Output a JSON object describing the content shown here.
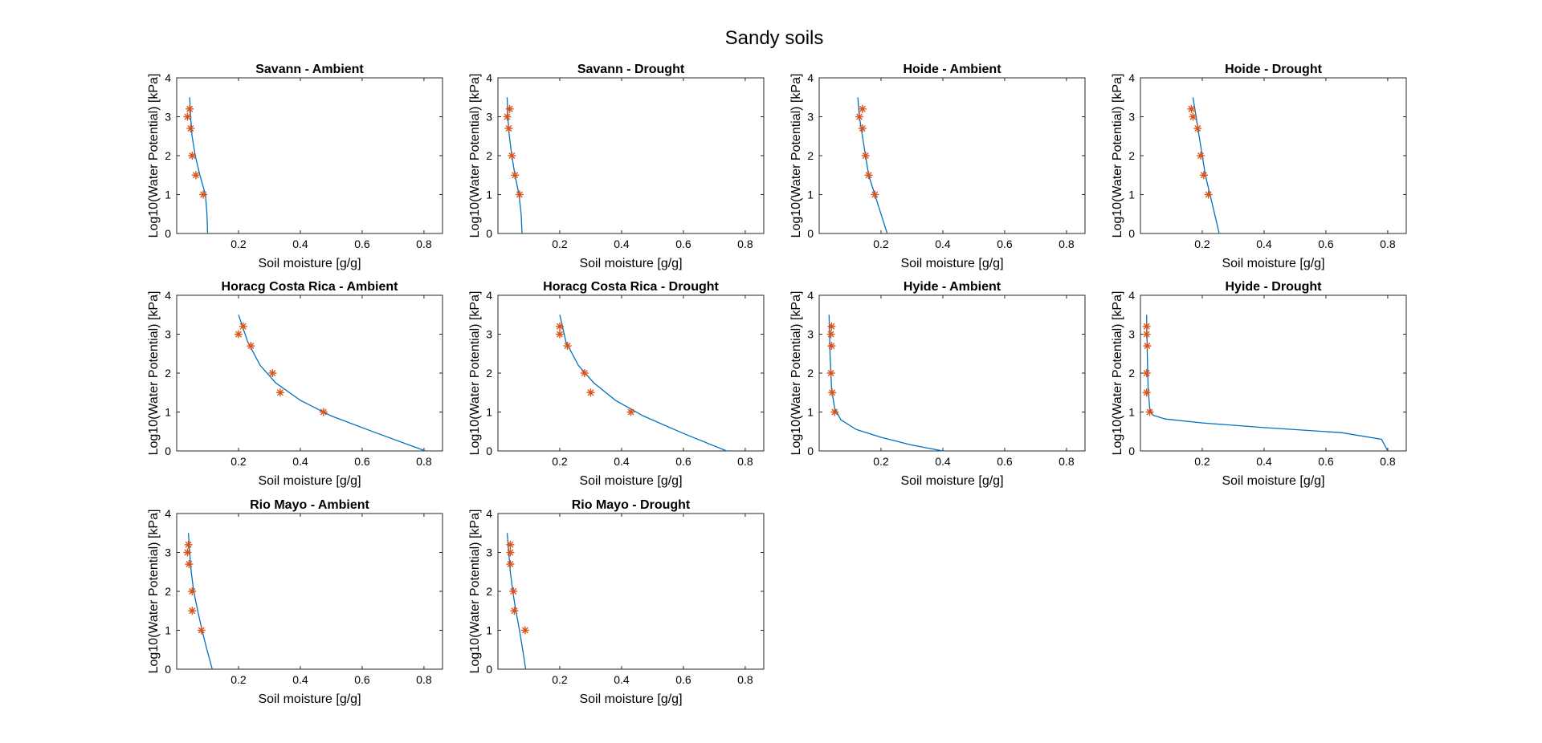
{
  "figure_title": "Sandy soils",
  "chart_data": [
    {
      "type": "line",
      "title": "Savann - Ambient",
      "xlabel": "Soil moisture [g/g]",
      "ylabel": "Log10(Water Potential) [kPa]",
      "xlim": [
        0,
        0.86
      ],
      "ylim": [
        0,
        4
      ],
      "xticks": [
        0.2,
        0.4,
        0.6,
        0.8
      ],
      "yticks": [
        0,
        1,
        2,
        3,
        4
      ],
      "series": [
        {
          "kind": "fit",
          "points": [
            [
              0.1,
              0
            ],
            [
              0.098,
              0.5
            ],
            [
              0.093,
              1
            ],
            [
              0.075,
              1.5
            ],
            [
              0.06,
              2
            ],
            [
              0.05,
              2.5
            ],
            [
              0.045,
              3
            ],
            [
              0.042,
              3.5
            ]
          ]
        },
        {
          "kind": "measured",
          "points": [
            [
              0.086,
              1
            ],
            [
              0.062,
              1.5
            ],
            [
              0.05,
              2
            ],
            [
              0.045,
              2.7
            ],
            [
              0.035,
              3
            ],
            [
              0.042,
              3.2
            ]
          ]
        }
      ]
    },
    {
      "type": "line",
      "title": "Savann - Drought",
      "xlabel": "Soil moisture [g/g]",
      "ylabel": "Log10(Water Potential) [kPa]",
      "xlim": [
        0,
        0.86
      ],
      "ylim": [
        0,
        4
      ],
      "xticks": [
        0.2,
        0.4,
        0.6,
        0.8
      ],
      "yticks": [
        0,
        1,
        2,
        3,
        4
      ],
      "series": [
        {
          "kind": "fit",
          "points": [
            [
              0.078,
              0
            ],
            [
              0.075,
              0.5
            ],
            [
              0.068,
              1
            ],
            [
              0.055,
              1.5
            ],
            [
              0.045,
              2
            ],
            [
              0.037,
              2.5
            ],
            [
              0.032,
              3
            ],
            [
              0.03,
              3.5
            ]
          ]
        },
        {
          "kind": "measured",
          "points": [
            [
              0.07,
              1
            ],
            [
              0.055,
              1.5
            ],
            [
              0.045,
              2
            ],
            [
              0.035,
              2.7
            ],
            [
              0.03,
              3
            ],
            [
              0.038,
              3.2
            ]
          ]
        }
      ]
    },
    {
      "type": "line",
      "title": "Hoide - Ambient",
      "xlabel": "Soil moisture [g/g]",
      "ylabel": "Log10(Water Potential) [kPa]",
      "xlim": [
        0,
        0.86
      ],
      "ylim": [
        0,
        4
      ],
      "xticks": [
        0.2,
        0.4,
        0.6,
        0.8
      ],
      "yticks": [
        0,
        1,
        2,
        3,
        4
      ],
      "series": [
        {
          "kind": "fit",
          "points": [
            [
              0.22,
              0
            ],
            [
              0.2,
              0.5
            ],
            [
              0.18,
              1
            ],
            [
              0.16,
              1.5
            ],
            [
              0.15,
              2
            ],
            [
              0.14,
              2.5
            ],
            [
              0.13,
              3
            ],
            [
              0.125,
              3.5
            ]
          ]
        },
        {
          "kind": "measured",
          "points": [
            [
              0.18,
              1
            ],
            [
              0.16,
              1.5
            ],
            [
              0.15,
              2
            ],
            [
              0.14,
              2.7
            ],
            [
              0.13,
              3
            ],
            [
              0.14,
              3.2
            ]
          ]
        }
      ]
    },
    {
      "type": "line",
      "title": "Hoide - Drought",
      "xlabel": "Soil moisture [g/g]",
      "ylabel": "Log10(Water Potential) [kPa]",
      "xlim": [
        0,
        0.86
      ],
      "ylim": [
        0,
        4
      ],
      "xticks": [
        0.2,
        0.4,
        0.6,
        0.8
      ],
      "yticks": [
        0,
        1,
        2,
        3,
        4
      ],
      "series": [
        {
          "kind": "fit",
          "points": [
            [
              0.255,
              0
            ],
            [
              0.24,
              0.5
            ],
            [
              0.225,
              1
            ],
            [
              0.21,
              1.5
            ],
            [
              0.2,
              2
            ],
            [
              0.19,
              2.5
            ],
            [
              0.18,
              3
            ],
            [
              0.17,
              3.5
            ]
          ]
        },
        {
          "kind": "measured",
          "points": [
            [
              0.22,
              1
            ],
            [
              0.205,
              1.5
            ],
            [
              0.195,
              2
            ],
            [
              0.185,
              2.7
            ],
            [
              0.17,
              3
            ],
            [
              0.165,
              3.2
            ]
          ]
        }
      ]
    },
    {
      "type": "line",
      "title": "Horacg Costa Rica - Ambient",
      "xlabel": "Soil moisture [g/g]",
      "ylabel": "Log10(Water Potential) [kPa]",
      "xlim": [
        0,
        0.86
      ],
      "ylim": [
        0,
        4
      ],
      "xticks": [
        0.2,
        0.4,
        0.6,
        0.8
      ],
      "yticks": [
        0,
        1,
        2,
        3,
        4
      ],
      "series": [
        {
          "kind": "fit",
          "points": [
            [
              0.805,
              0
            ],
            [
              0.65,
              0.45
            ],
            [
              0.5,
              0.9
            ],
            [
              0.4,
              1.3
            ],
            [
              0.32,
              1.75
            ],
            [
              0.27,
              2.2
            ],
            [
              0.23,
              2.8
            ],
            [
              0.2,
              3.5
            ]
          ]
        },
        {
          "kind": "measured",
          "points": [
            [
              0.475,
              1
            ],
            [
              0.335,
              1.5
            ],
            [
              0.31,
              2
            ],
            [
              0.24,
              2.7
            ],
            [
              0.2,
              3
            ],
            [
              0.215,
              3.2
            ]
          ]
        }
      ]
    },
    {
      "type": "line",
      "title": "Horacg Costa Rica - Drought",
      "xlabel": "Soil moisture [g/g]",
      "ylabel": "Log10(Water Potential) [kPa]",
      "xlim": [
        0,
        0.86
      ],
      "ylim": [
        0,
        4
      ],
      "xticks": [
        0.2,
        0.4,
        0.6,
        0.8
      ],
      "yticks": [
        0,
        1,
        2,
        3,
        4
      ],
      "series": [
        {
          "kind": "fit",
          "points": [
            [
              0.74,
              0
            ],
            [
              0.6,
              0.45
            ],
            [
              0.47,
              0.9
            ],
            [
              0.38,
              1.3
            ],
            [
              0.31,
              1.75
            ],
            [
              0.26,
              2.2
            ],
            [
              0.22,
              2.8
            ],
            [
              0.2,
              3.5
            ]
          ]
        },
        {
          "kind": "measured",
          "points": [
            [
              0.43,
              1
            ],
            [
              0.3,
              1.5
            ],
            [
              0.28,
              2
            ],
            [
              0.225,
              2.7
            ],
            [
              0.2,
              3
            ],
            [
              0.2,
              3.2
            ]
          ]
        }
      ]
    },
    {
      "type": "line",
      "title": "Hyide - Ambient",
      "xlabel": "Soil moisture [g/g]",
      "ylabel": "Log10(Water Potential) [kPa]",
      "xlim": [
        0,
        0.86
      ],
      "ylim": [
        0,
        4
      ],
      "xticks": [
        0.2,
        0.4,
        0.6,
        0.8
      ],
      "yticks": [
        0,
        1,
        2,
        3,
        4
      ],
      "series": [
        {
          "kind": "fit",
          "points": [
            [
              0.4,
              0
            ],
            [
              0.3,
              0.15
            ],
            [
              0.2,
              0.35
            ],
            [
              0.12,
              0.55
            ],
            [
              0.07,
              0.8
            ],
            [
              0.05,
              1.1
            ],
            [
              0.04,
              1.6
            ],
            [
              0.035,
              2.5
            ],
            [
              0.032,
              3.5
            ]
          ]
        },
        {
          "kind": "measured",
          "points": [
            [
              0.05,
              1
            ],
            [
              0.042,
              1.5
            ],
            [
              0.038,
              2
            ],
            [
              0.04,
              2.7
            ],
            [
              0.038,
              3
            ],
            [
              0.04,
              3.2
            ]
          ]
        }
      ]
    },
    {
      "type": "line",
      "title": "Hyide - Drought",
      "xlabel": "Soil moisture [g/g]",
      "ylabel": "Log10(Water Potential) [kPa]",
      "xlim": [
        0,
        0.86
      ],
      "ylim": [
        0,
        4
      ],
      "xticks": [
        0.2,
        0.4,
        0.6,
        0.8
      ],
      "yticks": [
        0,
        1,
        2,
        3,
        4
      ],
      "series": [
        {
          "kind": "fit",
          "points": [
            [
              0.8,
              0
            ],
            [
              0.78,
              0.3
            ],
            [
              0.65,
              0.47
            ],
            [
              0.4,
              0.6
            ],
            [
              0.2,
              0.72
            ],
            [
              0.08,
              0.82
            ],
            [
              0.04,
              0.92
            ],
            [
              0.03,
              1.1
            ],
            [
              0.025,
              1.6
            ],
            [
              0.022,
              2.5
            ],
            [
              0.02,
              3.5
            ]
          ]
        },
        {
          "kind": "measured",
          "points": [
            [
              0.03,
              1
            ],
            [
              0.02,
              1.5
            ],
            [
              0.02,
              2
            ],
            [
              0.022,
              2.7
            ],
            [
              0.02,
              3
            ],
            [
              0.02,
              3.2
            ]
          ]
        }
      ]
    },
    {
      "type": "line",
      "title": "Rio Mayo - Ambient",
      "xlabel": "Soil moisture [g/g]",
      "ylabel": "Log10(Water Potential) [kPa]",
      "xlim": [
        0,
        0.86
      ],
      "ylim": [
        0,
        4
      ],
      "xticks": [
        0.2,
        0.4,
        0.6,
        0.8
      ],
      "yticks": [
        0,
        1,
        2,
        3,
        4
      ],
      "series": [
        {
          "kind": "fit",
          "points": [
            [
              0.115,
              0
            ],
            [
              0.098,
              0.5
            ],
            [
              0.082,
              1
            ],
            [
              0.068,
              1.5
            ],
            [
              0.055,
              2
            ],
            [
              0.047,
              2.5
            ],
            [
              0.042,
              3
            ],
            [
              0.038,
              3.5
            ]
          ]
        },
        {
          "kind": "measured",
          "points": [
            [
              0.08,
              1
            ],
            [
              0.05,
              1.5
            ],
            [
              0.05,
              2
            ],
            [
              0.04,
              2.7
            ],
            [
              0.035,
              3
            ],
            [
              0.038,
              3.2
            ]
          ]
        }
      ]
    },
    {
      "type": "line",
      "title": "Rio Mayo - Drought",
      "xlabel": "Soil moisture [g/g]",
      "ylabel": "Log10(Water Potential) [kPa]",
      "xlim": [
        0,
        0.86
      ],
      "ylim": [
        0,
        4
      ],
      "xticks": [
        0.2,
        0.4,
        0.6,
        0.8
      ],
      "yticks": [
        0,
        1,
        2,
        3,
        4
      ],
      "series": [
        {
          "kind": "fit",
          "points": [
            [
              0.09,
              0
            ],
            [
              0.08,
              0.5
            ],
            [
              0.07,
              1
            ],
            [
              0.058,
              1.5
            ],
            [
              0.048,
              2
            ],
            [
              0.04,
              2.5
            ],
            [
              0.035,
              3
            ],
            [
              0.03,
              3.5
            ]
          ]
        },
        {
          "kind": "measured",
          "points": [
            [
              0.088,
              1
            ],
            [
              0.053,
              1.5
            ],
            [
              0.05,
              2
            ],
            [
              0.04,
              2.7
            ],
            [
              0.04,
              3
            ],
            [
              0.04,
              3.2
            ]
          ]
        }
      ]
    }
  ],
  "colors": {
    "fit_line": "#0072BD",
    "measured_marker": "#D95319",
    "axes": "#262626"
  }
}
